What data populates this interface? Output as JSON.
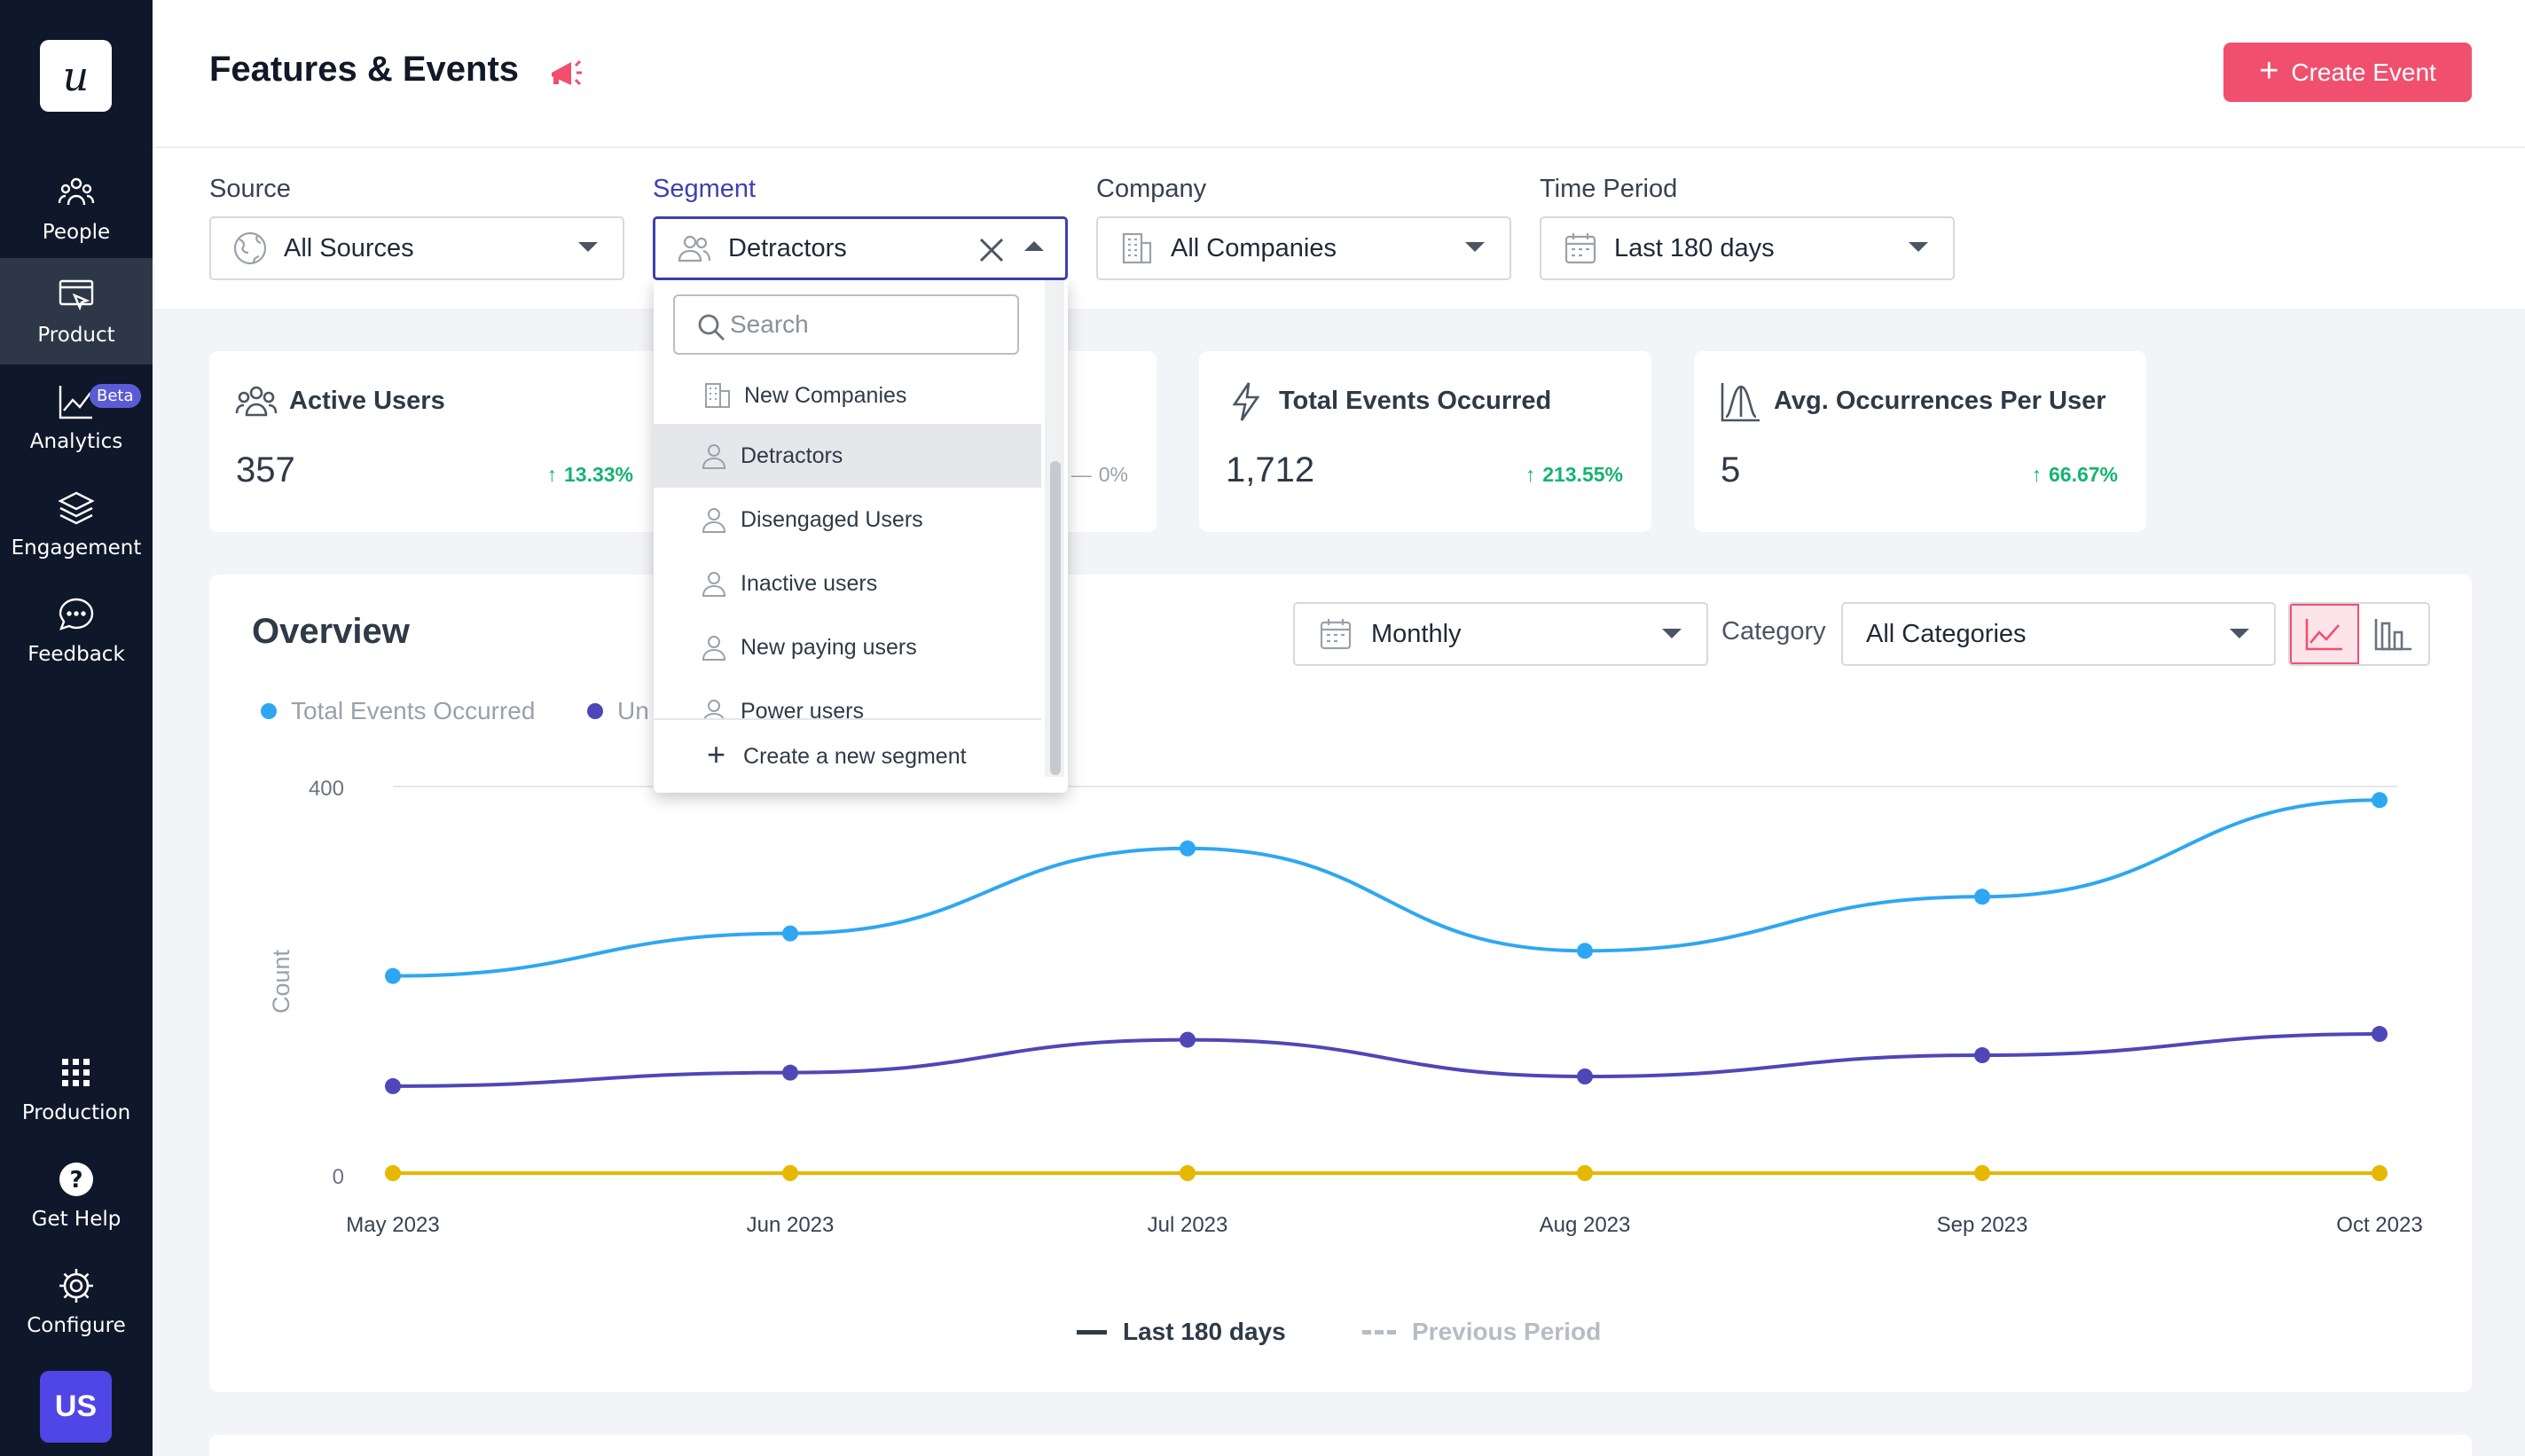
{
  "sidebar": {
    "logo": "u",
    "items": [
      {
        "label": "People",
        "icon": "people-icon"
      },
      {
        "label": "Product",
        "icon": "product-icon",
        "active": true
      },
      {
        "label": "Analytics",
        "icon": "analytics-icon",
        "badge": "Beta"
      },
      {
        "label": "Engagement",
        "icon": "layers-icon"
      },
      {
        "label": "Feedback",
        "icon": "chat-icon"
      },
      {
        "label": "Production",
        "icon": "grid-icon"
      },
      {
        "label": "Get Help",
        "icon": "help-icon"
      },
      {
        "label": "Configure",
        "icon": "gear-icon"
      }
    ],
    "avatar": "US"
  },
  "header": {
    "title": "Features & Events",
    "create_button": "Create Event"
  },
  "filters": {
    "source": {
      "label": "Source",
      "value": "All Sources"
    },
    "segment": {
      "label": "Segment",
      "value": "Detractors"
    },
    "company": {
      "label": "Company",
      "value": "All Companies"
    },
    "time_period": {
      "label": "Time Period",
      "value": "Last 180 days"
    }
  },
  "segment_dropdown": {
    "search_placeholder": "Search",
    "items": [
      {
        "label": "New Companies",
        "icon": "building-icon"
      },
      {
        "label": "Detractors",
        "icon": "user-icon",
        "selected": true
      },
      {
        "label": "Disengaged Users",
        "icon": "user-icon"
      },
      {
        "label": "Inactive users",
        "icon": "user-icon"
      },
      {
        "label": "New paying users",
        "icon": "user-icon"
      },
      {
        "label": "Power users",
        "icon": "user-icon"
      }
    ],
    "create_label": "Create a new segment"
  },
  "stats": [
    {
      "title": "Active Users",
      "value": "357",
      "delta": "13.33%",
      "trend": "up"
    },
    {
      "title": "",
      "value": "",
      "delta": "0%",
      "trend": "flat"
    },
    {
      "title": "Total Events Occurred",
      "value": "1,712",
      "delta": "213.55%",
      "trend": "up"
    },
    {
      "title": "Avg. Occurrences Per User",
      "value": "5",
      "delta": "66.67%",
      "trend": "up"
    }
  ],
  "overview": {
    "title": "Overview",
    "interval": "Monthly",
    "category_label": "Category",
    "category_value": "All Categories",
    "legend": [
      "Total Events Occurred",
      "Un"
    ],
    "period_legend": {
      "current": "Last 180 days",
      "previous": "Previous Period"
    }
  },
  "colors": {
    "accent": "#f0506e",
    "segment_accent": "#3f3fb0",
    "series_total": "#2ea7f2",
    "series_unique": "#4f46b8",
    "series_avg": "#e6b800",
    "positive": "#15b371",
    "sidebar_bg": "#0f172a"
  },
  "chart_data": {
    "type": "line",
    "ylabel": "Count",
    "ylim": [
      0,
      400
    ],
    "yticks": [
      "400",
      "0"
    ],
    "categories": [
      "May 2023",
      "Jun 2023",
      "Jul 2023",
      "Aug 2023",
      "Sep 2023",
      "Oct 2023"
    ],
    "series": [
      {
        "name": "Total Events Occurred",
        "color": "#2ea7f2",
        "values": [
          204,
          248,
          336,
          230,
          286,
          386
        ]
      },
      {
        "name": "Un",
        "color": "#4f46b8",
        "values": [
          90,
          104,
          138,
          100,
          122,
          144
        ]
      },
      {
        "color": "#e6b800",
        "values": [
          0,
          0,
          0,
          0,
          0,
          0
        ]
      }
    ]
  }
}
